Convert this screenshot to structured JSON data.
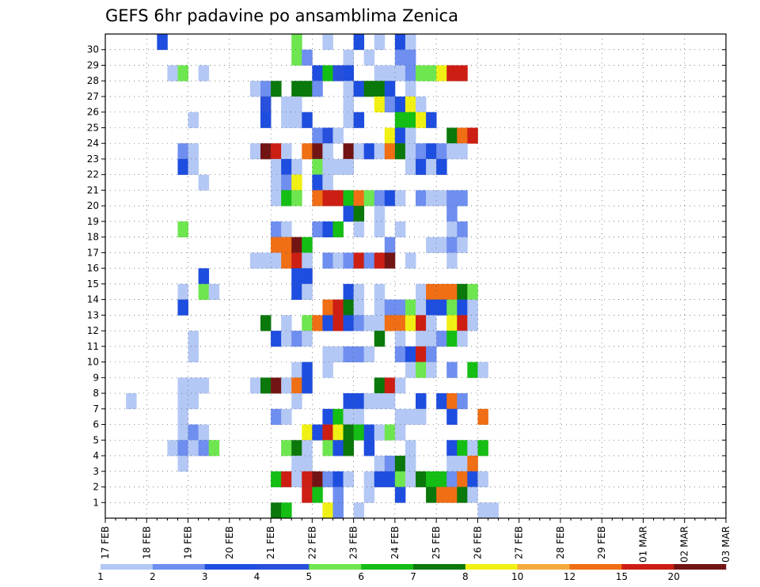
{
  "chart_data": {
    "type": "heatmap",
    "title": "GEFS 6hr padavine po ansamblima Zenica",
    "x_tick_labels": [
      "17 FEB",
      "18 FEB",
      "19 FEB",
      "20 FEB",
      "21 FEB",
      "22 FEB",
      "23 FEB",
      "24 FEB",
      "25 FEB",
      "26 FEB",
      "27 FEB",
      "28 FEB",
      "29 FEB",
      "01 MAR",
      "02 MAR",
      "03 MAR"
    ],
    "y_tick_labels": [
      "1",
      "2",
      "3",
      "4",
      "5",
      "6",
      "7",
      "8",
      "9",
      "10",
      "11",
      "12",
      "13",
      "14",
      "15",
      "16",
      "17",
      "18",
      "19",
      "20",
      "21",
      "22",
      "23",
      "24",
      "25",
      "26",
      "27",
      "28",
      "29",
      "30"
    ],
    "x_range": [
      "17 FEB 00Z",
      "03 MAR 00Z"
    ],
    "y_range": [
      1,
      30
    ],
    "x_unit": "6-hour step",
    "grid": true,
    "legend_position": "bottom",
    "colorbar": {
      "labels": [
        "1",
        "2",
        "3",
        "4",
        "5",
        "6",
        "7",
        "8",
        "10",
        "12",
        "15",
        "20"
      ],
      "colors": [
        "#b4c8f5",
        "#6e8ef0",
        "#1e4ee0",
        "#2850dc",
        "#6ee650",
        "#14be14",
        "#0a780a",
        "#f0f014",
        "#f5aa3c",
        "#f06e14",
        "#cd1e14",
        "#731414"
      ]
    },
    "cells": [
      [
        30,
        5,
        3
      ],
      [
        30,
        18,
        5
      ],
      [
        30,
        21,
        1
      ],
      [
        30,
        24,
        3
      ],
      [
        30,
        26,
        1
      ],
      [
        30,
        28,
        3
      ],
      [
        30,
        29,
        1
      ],
      [
        29,
        18,
        5
      ],
      [
        29,
        19,
        2
      ],
      [
        29,
        23,
        1
      ],
      [
        29,
        25,
        1
      ],
      [
        29,
        28,
        2
      ],
      [
        29,
        29,
        2
      ],
      [
        28,
        6,
        1
      ],
      [
        28,
        7,
        5
      ],
      [
        28,
        9,
        1
      ],
      [
        28,
        20,
        3
      ],
      [
        28,
        21,
        6
      ],
      [
        28,
        22,
        4
      ],
      [
        28,
        23,
        3
      ],
      [
        28,
        26,
        1
      ],
      [
        28,
        27,
        1
      ],
      [
        28,
        28,
        1
      ],
      [
        28,
        29,
        2
      ],
      [
        28,
        30,
        5
      ],
      [
        28,
        31,
        5
      ],
      [
        28,
        32,
        8
      ],
      [
        28,
        33,
        11
      ],
      [
        28,
        34,
        11
      ],
      [
        27,
        14,
        1
      ],
      [
        27,
        15,
        2
      ],
      [
        27,
        16,
        7
      ],
      [
        27,
        18,
        7
      ],
      [
        27,
        19,
        7
      ],
      [
        27,
        20,
        2
      ],
      [
        27,
        23,
        1
      ],
      [
        27,
        24,
        3
      ],
      [
        27,
        25,
        7
      ],
      [
        27,
        26,
        7
      ],
      [
        27,
        27,
        3
      ],
      [
        27,
        29,
        1
      ],
      [
        26,
        15,
        4
      ],
      [
        26,
        17,
        1
      ],
      [
        26,
        18,
        1
      ],
      [
        26,
        23,
        1
      ],
      [
        26,
        26,
        8
      ],
      [
        26,
        27,
        2
      ],
      [
        26,
        28,
        3
      ],
      [
        26,
        29,
        8
      ],
      [
        26,
        30,
        1
      ],
      [
        25,
        8,
        1
      ],
      [
        25,
        15,
        3
      ],
      [
        25,
        17,
        1
      ],
      [
        25,
        18,
        1
      ],
      [
        25,
        19,
        3
      ],
      [
        25,
        23,
        1
      ],
      [
        25,
        24,
        3
      ],
      [
        25,
        28,
        6
      ],
      [
        25,
        29,
        6
      ],
      [
        25,
        30,
        8
      ],
      [
        25,
        31,
        3
      ],
      [
        24,
        20,
        2
      ],
      [
        24,
        21,
        4
      ],
      [
        24,
        22,
        1
      ],
      [
        24,
        27,
        8
      ],
      [
        24,
        28,
        3
      ],
      [
        24,
        29,
        1
      ],
      [
        24,
        33,
        7
      ],
      [
        24,
        34,
        10
      ],
      [
        24,
        35,
        11
      ],
      [
        23,
        7,
        2
      ],
      [
        23,
        8,
        1
      ],
      [
        23,
        14,
        1
      ],
      [
        23,
        15,
        12
      ],
      [
        23,
        16,
        11
      ],
      [
        23,
        17,
        1
      ],
      [
        23,
        19,
        10
      ],
      [
        23,
        20,
        12
      ],
      [
        23,
        21,
        1
      ],
      [
        23,
        23,
        12
      ],
      [
        23,
        24,
        1
      ],
      [
        23,
        25,
        3
      ],
      [
        23,
        26,
        1
      ],
      [
        23,
        27,
        10
      ],
      [
        23,
        28,
        7
      ],
      [
        23,
        29,
        1
      ],
      [
        23,
        30,
        2
      ],
      [
        23,
        31,
        3
      ],
      [
        23,
        32,
        2
      ],
      [
        23,
        33,
        1
      ],
      [
        23,
        34,
        1
      ],
      [
        22,
        7,
        3
      ],
      [
        22,
        8,
        1
      ],
      [
        22,
        16,
        1
      ],
      [
        22,
        17,
        3
      ],
      [
        22,
        18,
        1
      ],
      [
        22,
        20,
        5
      ],
      [
        22,
        21,
        1
      ],
      [
        22,
        22,
        1
      ],
      [
        22,
        23,
        1
      ],
      [
        22,
        29,
        1
      ],
      [
        22,
        30,
        3
      ],
      [
        22,
        31,
        1
      ],
      [
        22,
        32,
        3
      ],
      [
        21,
        9,
        1
      ],
      [
        21,
        16,
        1
      ],
      [
        21,
        17,
        2
      ],
      [
        21,
        18,
        8
      ],
      [
        21,
        20,
        3
      ],
      [
        21,
        21,
        1
      ],
      [
        20,
        16,
        1
      ],
      [
        20,
        17,
        6
      ],
      [
        20,
        18,
        5
      ],
      [
        20,
        20,
        10
      ],
      [
        20,
        21,
        11
      ],
      [
        20,
        22,
        11
      ],
      [
        20,
        23,
        6
      ],
      [
        20,
        24,
        10
      ],
      [
        20,
        25,
        5
      ],
      [
        20,
        26,
        2
      ],
      [
        20,
        27,
        3
      ],
      [
        20,
        28,
        1
      ],
      [
        20,
        30,
        2
      ],
      [
        20,
        31,
        1
      ],
      [
        20,
        32,
        1
      ],
      [
        20,
        33,
        2
      ],
      [
        20,
        34,
        2
      ],
      [
        19,
        23,
        3
      ],
      [
        19,
        24,
        7
      ],
      [
        19,
        26,
        1
      ],
      [
        19,
        33,
        2
      ],
      [
        18,
        7,
        5
      ],
      [
        18,
        16,
        2
      ],
      [
        18,
        17,
        1
      ],
      [
        18,
        20,
        2
      ],
      [
        18,
        21,
        3
      ],
      [
        18,
        22,
        6
      ],
      [
        18,
        24,
        1
      ],
      [
        18,
        26,
        1
      ],
      [
        18,
        28,
        1
      ],
      [
        18,
        33,
        1
      ],
      [
        18,
        34,
        2
      ],
      [
        17,
        16,
        10
      ],
      [
        17,
        17,
        10
      ],
      [
        17,
        18,
        12
      ],
      [
        17,
        19,
        6
      ],
      [
        17,
        27,
        2
      ],
      [
        17,
        31,
        1
      ],
      [
        17,
        32,
        1
      ],
      [
        17,
        33,
        2
      ],
      [
        17,
        34,
        1
      ],
      [
        16,
        14,
        1
      ],
      [
        16,
        15,
        1
      ],
      [
        16,
        16,
        1
      ],
      [
        16,
        17,
        10
      ],
      [
        16,
        18,
        11
      ],
      [
        16,
        19,
        1
      ],
      [
        16,
        21,
        2
      ],
      [
        16,
        22,
        1
      ],
      [
        16,
        23,
        2
      ],
      [
        16,
        24,
        11
      ],
      [
        16,
        25,
        2
      ],
      [
        16,
        26,
        11
      ],
      [
        16,
        27,
        12
      ],
      [
        16,
        29,
        1
      ],
      [
        16,
        33,
        1
      ],
      [
        15,
        9,
        3
      ],
      [
        15,
        18,
        3
      ],
      [
        15,
        19,
        3
      ],
      [
        14,
        7,
        1
      ],
      [
        14,
        9,
        5
      ],
      [
        14,
        10,
        1
      ],
      [
        14,
        18,
        3
      ],
      [
        14,
        19,
        1
      ],
      [
        14,
        23,
        3
      ],
      [
        14,
        24,
        1
      ],
      [
        14,
        26,
        1
      ],
      [
        14,
        30,
        1
      ],
      [
        14,
        31,
        10
      ],
      [
        14,
        32,
        10
      ],
      [
        14,
        33,
        10
      ],
      [
        14,
        34,
        7
      ],
      [
        14,
        35,
        5
      ],
      [
        13,
        7,
        3
      ],
      [
        13,
        21,
        10
      ],
      [
        13,
        22,
        11
      ],
      [
        13,
        23,
        7
      ],
      [
        13,
        24,
        1
      ],
      [
        13,
        26,
        1
      ],
      [
        13,
        27,
        2
      ],
      [
        13,
        28,
        2
      ],
      [
        13,
        29,
        5
      ],
      [
        13,
        30,
        1
      ],
      [
        13,
        31,
        3
      ],
      [
        13,
        32,
        3
      ],
      [
        13,
        33,
        5
      ],
      [
        13,
        34,
        3
      ],
      [
        13,
        35,
        1
      ],
      [
        12,
        15,
        7
      ],
      [
        12,
        17,
        1
      ],
      [
        12,
        19,
        5
      ],
      [
        12,
        20,
        10
      ],
      [
        12,
        21,
        3
      ],
      [
        12,
        22,
        11
      ],
      [
        12,
        23,
        3
      ],
      [
        12,
        24,
        2
      ],
      [
        12,
        25,
        1
      ],
      [
        12,
        26,
        1
      ],
      [
        12,
        27,
        10
      ],
      [
        12,
        28,
        10
      ],
      [
        12,
        29,
        8
      ],
      [
        12,
        30,
        11
      ],
      [
        12,
        31,
        1
      ],
      [
        12,
        33,
        8
      ],
      [
        12,
        34,
        11
      ],
      [
        12,
        35,
        1
      ],
      [
        11,
        8,
        1
      ],
      [
        11,
        16,
        3
      ],
      [
        11,
        17,
        1
      ],
      [
        11,
        18,
        2
      ],
      [
        11,
        19,
        1
      ],
      [
        11,
        26,
        7
      ],
      [
        11,
        28,
        1
      ],
      [
        11,
        30,
        1
      ],
      [
        11,
        31,
        1
      ],
      [
        11,
        32,
        2
      ],
      [
        11,
        33,
        6
      ],
      [
        11,
        34,
        1
      ],
      [
        10,
        8,
        1
      ],
      [
        10,
        21,
        1
      ],
      [
        10,
        22,
        1
      ],
      [
        10,
        23,
        2
      ],
      [
        10,
        24,
        2
      ],
      [
        10,
        25,
        1
      ],
      [
        10,
        28,
        2
      ],
      [
        10,
        29,
        3
      ],
      [
        10,
        30,
        11
      ],
      [
        10,
        31,
        2
      ],
      [
        9,
        18,
        1
      ],
      [
        9,
        19,
        3
      ],
      [
        9,
        21,
        1
      ],
      [
        9,
        29,
        1
      ],
      [
        9,
        30,
        5
      ],
      [
        9,
        31,
        1
      ],
      [
        9,
        33,
        2
      ],
      [
        9,
        35,
        6
      ],
      [
        9,
        36,
        1
      ],
      [
        8,
        7,
        1
      ],
      [
        8,
        8,
        1
      ],
      [
        8,
        9,
        1
      ],
      [
        8,
        14,
        1
      ],
      [
        8,
        15,
        7
      ],
      [
        8,
        16,
        12
      ],
      [
        8,
        17,
        1
      ],
      [
        8,
        18,
        10
      ],
      [
        8,
        19,
        3
      ],
      [
        8,
        26,
        7
      ],
      [
        8,
        27,
        11
      ],
      [
        8,
        28,
        1
      ],
      [
        7,
        2,
        1
      ],
      [
        7,
        7,
        1
      ],
      [
        7,
        8,
        1
      ],
      [
        7,
        18,
        1
      ],
      [
        7,
        23,
        3
      ],
      [
        7,
        24,
        3
      ],
      [
        7,
        25,
        1
      ],
      [
        7,
        26,
        1
      ],
      [
        7,
        27,
        1
      ],
      [
        7,
        30,
        3
      ],
      [
        7,
        32,
        3
      ],
      [
        7,
        33,
        10
      ],
      [
        7,
        34,
        2
      ],
      [
        6,
        7,
        1
      ],
      [
        6,
        16,
        2
      ],
      [
        6,
        17,
        1
      ],
      [
        6,
        21,
        3
      ],
      [
        6,
        22,
        6
      ],
      [
        6,
        23,
        1
      ],
      [
        6,
        24,
        1
      ],
      [
        6,
        28,
        1
      ],
      [
        6,
        29,
        1
      ],
      [
        6,
        30,
        1
      ],
      [
        6,
        33,
        3
      ],
      [
        6,
        36,
        10
      ],
      [
        5,
        7,
        1
      ],
      [
        5,
        8,
        2
      ],
      [
        5,
        9,
        1
      ],
      [
        5,
        19,
        8
      ],
      [
        5,
        20,
        3
      ],
      [
        5,
        21,
        11
      ],
      [
        5,
        22,
        8
      ],
      [
        5,
        23,
        7
      ],
      [
        5,
        24,
        6
      ],
      [
        5,
        25,
        3
      ],
      [
        5,
        26,
        1
      ],
      [
        5,
        27,
        5
      ],
      [
        5,
        28,
        1
      ],
      [
        4,
        6,
        1
      ],
      [
        4,
        7,
        2
      ],
      [
        4,
        8,
        1
      ],
      [
        4,
        9,
        2
      ],
      [
        4,
        10,
        5
      ],
      [
        4,
        17,
        5
      ],
      [
        4,
        18,
        7
      ],
      [
        4,
        19,
        1
      ],
      [
        4,
        21,
        5
      ],
      [
        4,
        22,
        3
      ],
      [
        4,
        23,
        7
      ],
      [
        4,
        25,
        3
      ],
      [
        4,
        29,
        1
      ],
      [
        4,
        33,
        3
      ],
      [
        4,
        34,
        6
      ],
      [
        4,
        35,
        1
      ],
      [
        4,
        36,
        6
      ],
      [
        3,
        7,
        1
      ],
      [
        3,
        18,
        1
      ],
      [
        3,
        19,
        1
      ],
      [
        3,
        26,
        1
      ],
      [
        3,
        27,
        2
      ],
      [
        3,
        28,
        7
      ],
      [
        3,
        29,
        1
      ],
      [
        3,
        33,
        1
      ],
      [
        3,
        34,
        1
      ],
      [
        3,
        35,
        10
      ],
      [
        2,
        16,
        6
      ],
      [
        2,
        17,
        11
      ],
      [
        2,
        18,
        1
      ],
      [
        2,
        19,
        11
      ],
      [
        2,
        20,
        12
      ],
      [
        2,
        21,
        2
      ],
      [
        2,
        22,
        3
      ],
      [
        2,
        23,
        1
      ],
      [
        2,
        25,
        1
      ],
      [
        2,
        26,
        3
      ],
      [
        2,
        27,
        3
      ],
      [
        2,
        28,
        5
      ],
      [
        2,
        29,
        1
      ],
      [
        2,
        30,
        7
      ],
      [
        2,
        31,
        6
      ],
      [
        2,
        32,
        6
      ],
      [
        2,
        33,
        2
      ],
      [
        2,
        34,
        10
      ],
      [
        2,
        35,
        3
      ],
      [
        2,
        36,
        1
      ],
      [
        1,
        19,
        11
      ],
      [
        1,
        20,
        6
      ],
      [
        1,
        22,
        2
      ],
      [
        1,
        25,
        1
      ],
      [
        1,
        28,
        3
      ],
      [
        1,
        31,
        7
      ],
      [
        1,
        32,
        10
      ],
      [
        1,
        33,
        10
      ],
      [
        1,
        34,
        7
      ],
      [
        1,
        35,
        1
      ],
      [
        0,
        16,
        7
      ],
      [
        0,
        17,
        6
      ],
      [
        0,
        21,
        8
      ],
      [
        0,
        22,
        2
      ],
      [
        0,
        24,
        1
      ],
      [
        0,
        36,
        1
      ],
      [
        0,
        37,
        1
      ]
    ]
  }
}
